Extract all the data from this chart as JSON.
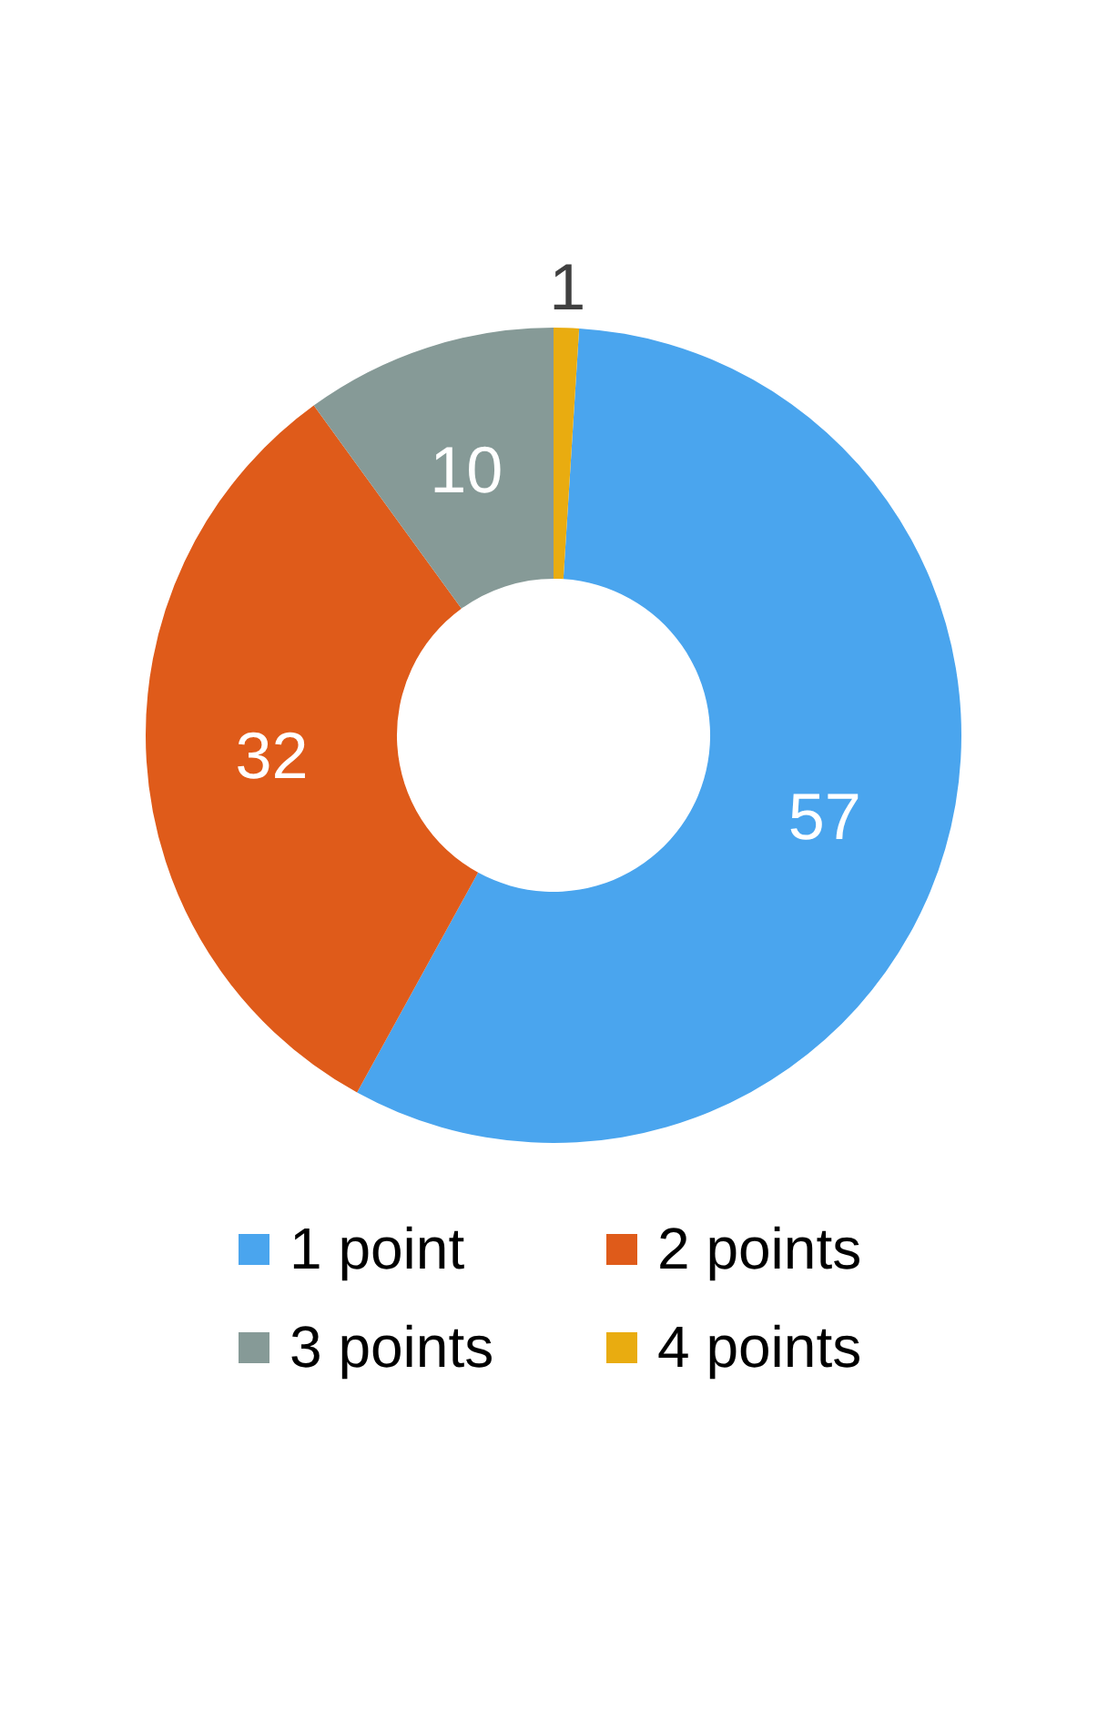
{
  "chart_data": {
    "type": "donut",
    "categories": [
      "1 point",
      "2 points",
      "3 points",
      "4 points"
    ],
    "values": [
      57,
      32,
      10,
      1
    ],
    "colors": [
      "#4aa5ee",
      "#df5b1a",
      "#869a97",
      "#e9ac10"
    ],
    "data_labels": true,
    "legend": "bottom"
  }
}
